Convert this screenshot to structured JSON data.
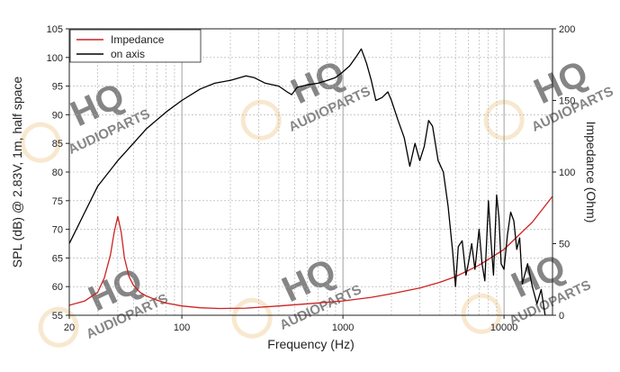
{
  "watermark": {
    "brand": "HQ",
    "subtitle": "AUDIOPARTS",
    "color": "#f3d7a8"
  },
  "chart_data": {
    "type": "line",
    "xlabel": "Frequency (Hz)",
    "ylabel_left": "SPL (dB) @ 2.83V, 1m, half space",
    "ylabel_right": "Impedance (Ohm)",
    "x_scale": "log",
    "xlim": [
      20,
      20000
    ],
    "ylim_left": [
      55,
      105
    ],
    "ylim_right": [
      0,
      200
    ],
    "x_tick_labels": [
      "20",
      "100",
      "1000",
      "10000"
    ],
    "y_left_tick_labels": [
      "55",
      "60",
      "65",
      "70",
      "75",
      "80",
      "85",
      "90",
      "95",
      "100",
      "105"
    ],
    "y_right_tick_labels": [
      "0",
      "50",
      "100",
      "150",
      "200"
    ],
    "grid": true,
    "legend_position": "top-left",
    "series": [
      {
        "name": "Impedance",
        "axis": "right",
        "color": "#cc2222",
        "x": [
          20,
          25,
          30,
          33,
          36,
          38,
          40,
          42,
          44,
          47,
          50,
          55,
          60,
          70,
          80,
          100,
          130,
          170,
          250,
          400,
          600,
          1000,
          1500,
          2000,
          3000,
          4000,
          5000,
          7000,
          10000,
          15000,
          20000
        ],
        "y": [
          7,
          10,
          16,
          26,
          42,
          58,
          69,
          58,
          40,
          27,
          21,
          16,
          13.5,
          10.5,
          8.5,
          6.5,
          5.2,
          4.7,
          5,
          6.5,
          8,
          10,
          12.5,
          15,
          19,
          23,
          27,
          35,
          46,
          65,
          83
        ]
      },
      {
        "name": "on axis",
        "axis": "left",
        "color": "#000000",
        "x": [
          20,
          25,
          30,
          40,
          50,
          60,
          80,
          100,
          130,
          160,
          200,
          250,
          280,
          330,
          400,
          450,
          480,
          520,
          600,
          700,
          800,
          900,
          1000,
          1100,
          1200,
          1300,
          1400,
          1500,
          1600,
          1750,
          1900,
          2000,
          2200,
          2400,
          2600,
          2800,
          3000,
          3200,
          3400,
          3600,
          3900,
          4200,
          4500,
          4800,
          5000,
          5200,
          5500,
          5800,
          6000,
          6300,
          6600,
          7000,
          7300,
          7600,
          8000,
          8300,
          8600,
          9000,
          9300,
          9600,
          10000,
          10500,
          11000,
          11500,
          12000,
          12500,
          13000,
          14000,
          15000,
          16000,
          17000,
          18000,
          20000
        ],
        "y": [
          67.5,
          73,
          77.5,
          82,
          85,
          87.5,
          90.5,
          92.5,
          94.5,
          95.5,
          96,
          96.8,
          96.5,
          95.5,
          95,
          94,
          93.5,
          94.8,
          95.2,
          95.5,
          96,
          96.5,
          97.5,
          98.5,
          100,
          101.5,
          99,
          96,
          92.5,
          93,
          94,
          92.5,
          89,
          86,
          81,
          85,
          82,
          84.5,
          89,
          88,
          82,
          80,
          74,
          66,
          60,
          67,
          68,
          62,
          64,
          67.5,
          63,
          70,
          64,
          61,
          75,
          68,
          62,
          76,
          72,
          64,
          63,
          69,
          73,
          71.5,
          66.5,
          68.5,
          60.5,
          64,
          60,
          57,
          59.5,
          55,
          55
        ]
      }
    ]
  }
}
